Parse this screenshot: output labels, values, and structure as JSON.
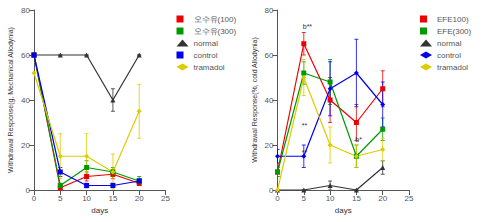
{
  "chart_data": [
    {
      "type": "line",
      "xlabel": "days",
      "ylabel": "Withdrawal Response(g, Mechanical Allodynia)",
      "x": [
        0,
        5,
        10,
        15,
        20
      ],
      "xlim": [
        0,
        25
      ],
      "xticks": [
        0,
        5,
        10,
        15,
        20,
        25
      ],
      "ylim": [
        0,
        80
      ],
      "yticks": [
        0,
        20,
        40,
        60,
        80
      ],
      "grid": false,
      "legend": "upper right",
      "series": [
        {
          "name": "오수유(100)",
          "color": "#ee0000",
          "marker": "square",
          "values": [
            60,
            1,
            6,
            7,
            3
          ],
          "yerr": [
            0,
            1,
            2,
            2,
            1
          ]
        },
        {
          "name": "오수유(300)",
          "color": "#009900",
          "marker": "square",
          "values": [
            60,
            2,
            10,
            8,
            4
          ],
          "yerr": [
            0,
            1,
            3,
            2,
            2
          ]
        },
        {
          "name": "normal",
          "color": "#333333",
          "marker": "triangle",
          "values": [
            60,
            60,
            60,
            40,
            60
          ],
          "yerr": [
            0,
            0,
            0,
            5,
            0
          ]
        },
        {
          "name": "control",
          "color": "#0000ee",
          "marker": "square",
          "values": [
            60,
            8,
            2,
            2,
            4
          ],
          "yerr": [
            0,
            2,
            1,
            1,
            1
          ]
        },
        {
          "name": "tramadol",
          "color": "#ddcc00",
          "marker": "diamond",
          "values": [
            52,
            15,
            15,
            8,
            35
          ],
          "yerr": [
            0,
            10,
            10,
            8,
            12
          ]
        }
      ]
    },
    {
      "type": "line",
      "xlabel": "days",
      "ylabel": "Withdrawal Response(%, cold Allodynia)",
      "x": [
        0,
        5,
        10,
        15,
        20
      ],
      "xlim": [
        0,
        25
      ],
      "xticks": [
        0,
        5,
        10,
        15,
        20,
        25
      ],
      "ylim": [
        0,
        80
      ],
      "yticks": [
        0,
        20,
        40,
        60,
        80
      ],
      "grid": false,
      "legend": "upper right",
      "series": [
        {
          "name": "EFE100)",
          "color": "#ee0000",
          "marker": "square",
          "values": [
            8,
            65,
            40,
            30,
            45
          ],
          "yerr": [
            2,
            5,
            10,
            8,
            8
          ]
        },
        {
          "name": "EFE(300)",
          "color": "#009900",
          "marker": "square",
          "values": [
            8,
            52,
            48,
            15,
            27
          ],
          "yerr": [
            2,
            5,
            10,
            5,
            5
          ]
        },
        {
          "name": "normal",
          "color": "#333333",
          "marker": "triangle",
          "values": [
            0,
            0,
            2,
            0,
            10
          ],
          "yerr": [
            0,
            0,
            2,
            0,
            3
          ]
        },
        {
          "name": "control",
          "color": "#0000ee",
          "marker": "diamond",
          "values": [
            15,
            15,
            45,
            52,
            38
          ],
          "yerr": [
            3,
            5,
            12,
            15,
            10
          ]
        },
        {
          "name": "tramadol",
          "color": "#ddcc00",
          "marker": "diamond",
          "values": [
            0,
            50,
            20,
            15,
            18
          ],
          "yerr": [
            0,
            8,
            8,
            5,
            5
          ]
        }
      ],
      "annotations": [
        {
          "x": 4.8,
          "y": 71,
          "text": "b**",
          "color": "#333333"
        },
        {
          "x": 4.6,
          "y": 27,
          "text": "**",
          "color": "#333333"
        },
        {
          "x": 4.6,
          "y": 15,
          "text": "**",
          "color": "#333333"
        },
        {
          "x": 14.8,
          "y": 21,
          "text": "b*",
          "color": "#333333"
        }
      ]
    }
  ]
}
